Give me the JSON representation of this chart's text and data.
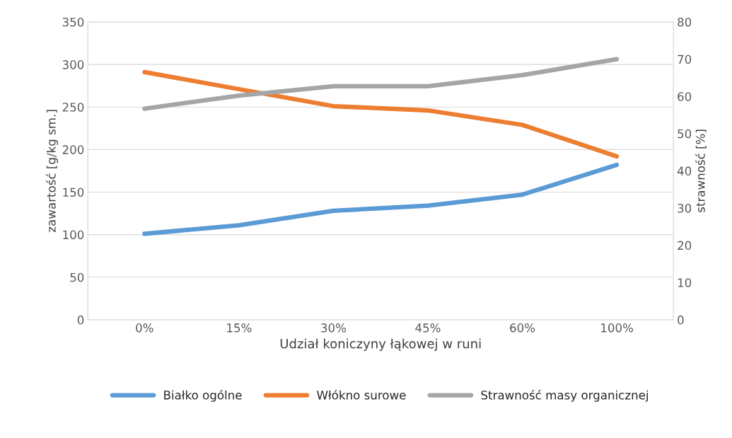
{
  "chart_data": {
    "type": "line",
    "xlabel": "Udział koniczyny łąkowej w runi",
    "ylabel": "zawartość [g/kg sm.]",
    "y2label": "strawność [%]",
    "categories": [
      "0%",
      "15%",
      "30%",
      "45%",
      "60%",
      "100%"
    ],
    "series": [
      {
        "name": "Białko ogólne",
        "color": "#5b9bd5",
        "values": [
          101,
          111,
          128,
          134,
          147,
          182
        ]
      },
      {
        "name": "Włókno surowe",
        "color": "#ed7d31",
        "values": [
          291,
          271,
          251,
          246,
          229,
          192
        ]
      },
      {
        "name": "Strawność masy organicznej",
        "color": "#a5a5a5",
        "axis": "y2",
        "values": [
          56.7,
          60.2,
          62.7,
          62.7,
          65.7,
          70
        ]
      }
    ],
    "ylim": [
      0,
      350
    ],
    "yticks": [
      0,
      50,
      100,
      150,
      200,
      250,
      300,
      350
    ],
    "y2lim": [
      0,
      80
    ],
    "y2ticks": [
      0,
      10,
      20,
      30,
      40,
      50,
      60,
      70,
      80
    ],
    "grid": "y",
    "legend": "bottom",
    "line_style": "solid",
    "marker": "none"
  }
}
